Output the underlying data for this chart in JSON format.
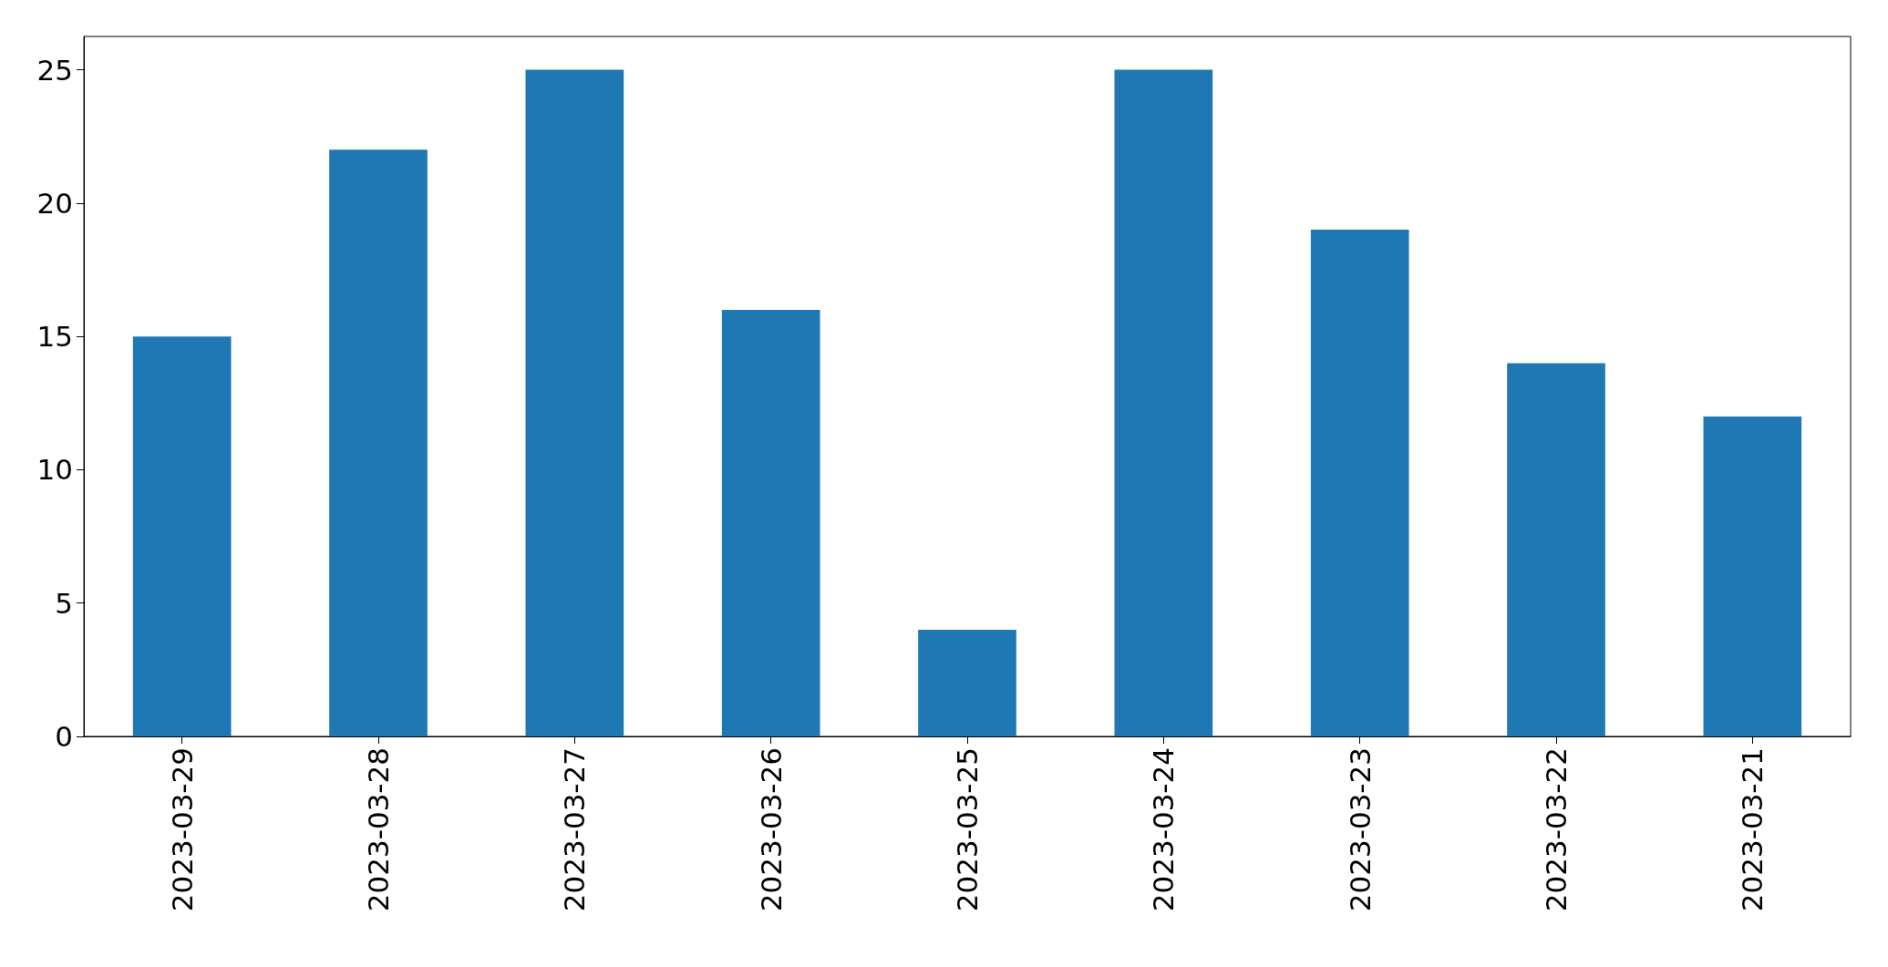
{
  "chart_data": {
    "type": "bar",
    "categories": [
      "2023-03-29",
      "2023-03-28",
      "2023-03-27",
      "2023-03-26",
      "2023-03-25",
      "2023-03-24",
      "2023-03-23",
      "2023-03-22",
      "2023-03-21"
    ],
    "values": [
      15,
      22,
      25,
      16,
      4,
      25,
      19,
      14,
      12
    ],
    "color": "#1f77b4",
    "ylim": [
      0,
      26.25
    ],
    "yticks": [
      0,
      5,
      10,
      15,
      20,
      25
    ],
    "grid": false
  }
}
